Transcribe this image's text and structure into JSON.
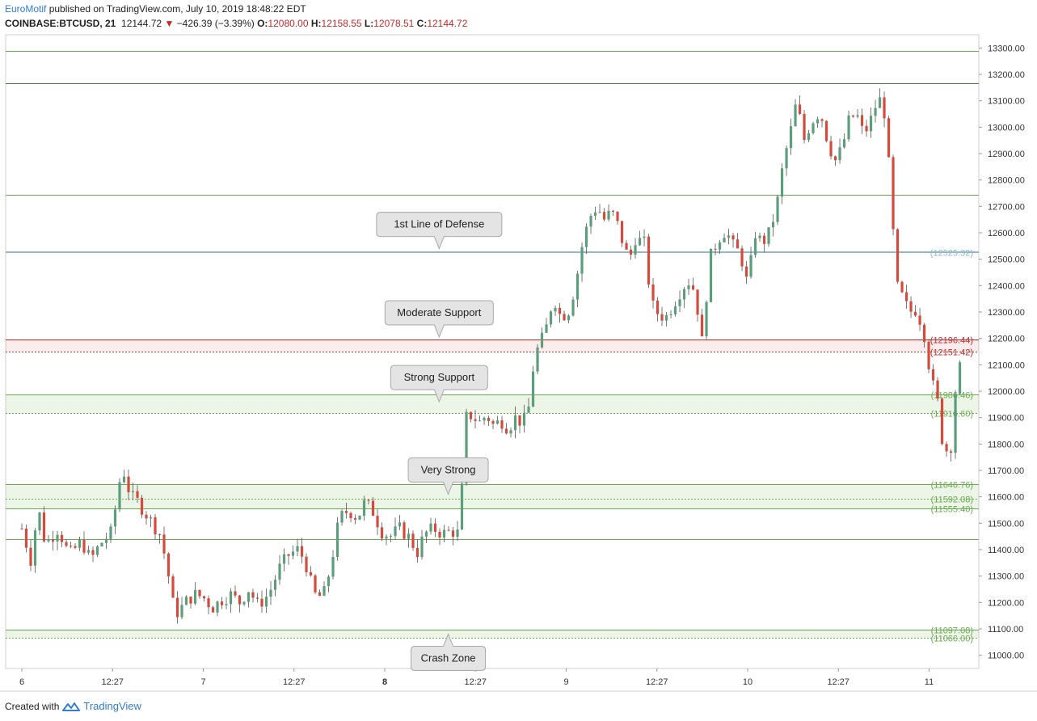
{
  "header": {
    "author": "EuroMotif",
    "published": "published on TradingView.com, July 10, 2019 18:48:22 EDT",
    "symbol": "COINBASE:BTCUSD, 21",
    "last": "12144.72",
    "change": "−426.39 (−3.39%)",
    "o_label": "O:",
    "o": "12080.00",
    "h_label": "H:",
    "h": "12158.55",
    "l_label": "L:",
    "l": "12078.51",
    "c_label": "C:",
    "c": "12144.72"
  },
  "footer": {
    "created": "Created with",
    "brand": "TradingView"
  },
  "colors": {
    "up": "#5c9e7c",
    "down": "#d64a3c",
    "support": "#6aaa4e",
    "resistance": "#c62828",
    "defense": "#8fb8cf"
  },
  "chart_data": {
    "type": "candlestick",
    "ylim": [
      10950,
      13350
    ],
    "y_ticks": [
      "13300.00",
      "13200.00",
      "13100.00",
      "13000.00",
      "12900.00",
      "12800.00",
      "12700.00",
      "12600.00",
      "12500.00",
      "12400.00",
      "12300.00",
      "12200.00",
      "12100.00",
      "12000.00",
      "11900.00",
      "11800.00",
      "11700.00",
      "11600.00",
      "11500.00",
      "11400.00",
      "11300.00",
      "11200.00",
      "11100.00",
      "11000.00"
    ],
    "x_ticks": [
      {
        "label": "6",
        "bold": false
      },
      {
        "label": "12:27",
        "bold": false
      },
      {
        "label": "7",
        "bold": false
      },
      {
        "label": "12:27",
        "bold": false
      },
      {
        "label": "8",
        "bold": true
      },
      {
        "label": "12:27",
        "bold": false
      },
      {
        "label": "9",
        "bold": false
      },
      {
        "label": "12:27",
        "bold": false
      },
      {
        "label": "10",
        "bold": false
      },
      {
        "label": "12:27",
        "bold": false
      },
      {
        "label": "11",
        "bold": false
      }
    ],
    "levels": [
      {
        "value": 13290,
        "kind": "green"
      },
      {
        "value": 13165,
        "kind": "dark"
      },
      {
        "value": 12745,
        "kind": "green"
      },
      {
        "value": 12530,
        "kind": "defense"
      },
      {
        "value": 12525.32,
        "kind": "defense",
        "label": "(12525.32)"
      },
      {
        "value": 12196.44,
        "kind": "red",
        "label": "(12196.44)"
      },
      {
        "value": 12151.42,
        "kind": "red-dot",
        "label": "(12151.42)"
      },
      {
        "value": 11986.46,
        "kind": "green",
        "label": "(11986.46)"
      },
      {
        "value": 11916.6,
        "kind": "green-dot",
        "label": "(11916.60)"
      },
      {
        "value": 11646.76,
        "kind": "green",
        "label": "(11646.76)"
      },
      {
        "value": 11592.08,
        "kind": "green-dot",
        "label": "(11592.08)"
      },
      {
        "value": 11555.4,
        "kind": "green",
        "label": "(11555.40)"
      },
      {
        "value": 11440,
        "kind": "green"
      },
      {
        "value": 11097.08,
        "kind": "green",
        "label": "(11097.08)"
      },
      {
        "value": 11066.0,
        "kind": "green-dot",
        "label": "(11066.00)"
      }
    ],
    "zones": [
      {
        "from": 12151.42,
        "to": 12196.44,
        "color": "red"
      },
      {
        "from": 11916.6,
        "to": 11986.46,
        "color": "green"
      },
      {
        "from": 11555.4,
        "to": 11646.76,
        "color": "green"
      },
      {
        "from": 11066.0,
        "to": 11097.08,
        "color": "green"
      }
    ],
    "annotations": [
      {
        "text": "1st Line of Defense",
        "anchor": "top",
        "value": 12540,
        "day": 2.3
      },
      {
        "text": "Moderate Support",
        "anchor": "top",
        "value": 12205,
        "day": 2.3
      },
      {
        "text": "Strong Support",
        "anchor": "top",
        "value": 11960,
        "day": 2.3
      },
      {
        "text": "Very Strong",
        "anchor": "top",
        "value": 11610,
        "day": 2.35
      },
      {
        "text": "Crash Zone",
        "anchor": "bottom",
        "value": 11080,
        "day": 2.35
      }
    ],
    "x_range_days": [
      0,
      5.63
    ],
    "candles_path": [
      [
        0.0,
        11480
      ],
      [
        0.05,
        11360
      ],
      [
        0.09,
        11560
      ],
      [
        0.13,
        11420
      ],
      [
        0.2,
        11480
      ],
      [
        0.26,
        11380
      ],
      [
        0.33,
        11430
      ],
      [
        0.38,
        11360
      ],
      [
        0.43,
        11420
      ],
      [
        0.5,
        11470
      ],
      [
        0.53,
        11640
      ],
      [
        0.56,
        11700
      ],
      [
        0.6,
        11600
      ],
      [
        0.63,
        11590
      ],
      [
        0.68,
        11540
      ],
      [
        0.72,
        11500
      ],
      [
        0.76,
        11460
      ],
      [
        0.8,
        11340
      ],
      [
        0.83,
        11200
      ],
      [
        0.86,
        11160
      ],
      [
        0.9,
        11200
      ],
      [
        0.95,
        11230
      ],
      [
        1.0,
        11220
      ],
      [
        1.05,
        11180
      ],
      [
        1.1,
        11210
      ],
      [
        1.15,
        11230
      ],
      [
        1.2,
        11200
      ],
      [
        1.25,
        11250
      ],
      [
        1.3,
        11190
      ],
      [
        1.36,
        11230
      ],
      [
        1.42,
        11330
      ],
      [
        1.47,
        11380
      ],
      [
        1.52,
        11400
      ],
      [
        1.56,
        11360
      ],
      [
        1.61,
        11230
      ],
      [
        1.66,
        11220
      ],
      [
        1.7,
        11330
      ],
      [
        1.75,
        11520
      ],
      [
        1.8,
        11550
      ],
      [
        1.85,
        11520
      ],
      [
        1.89,
        11580
      ],
      [
        1.94,
        11540
      ],
      [
        1.98,
        11470
      ],
      [
        2.03,
        11450
      ],
      [
        2.08,
        11480
      ],
      [
        2.13,
        11450
      ],
      [
        2.18,
        11390
      ],
      [
        2.22,
        11460
      ],
      [
        2.27,
        11480
      ],
      [
        2.32,
        11460
      ],
      [
        2.37,
        11470
      ],
      [
        2.41,
        11460
      ],
      [
        2.45,
        11900
      ],
      [
        2.48,
        11910
      ],
      [
        2.52,
        11880
      ],
      [
        2.56,
        11910
      ],
      [
        2.6,
        11870
      ],
      [
        2.64,
        11890
      ],
      [
        2.68,
        11860
      ],
      [
        2.72,
        11900
      ],
      [
        2.76,
        11880
      ],
      [
        2.79,
        11920
      ],
      [
        2.82,
        12100
      ],
      [
        2.85,
        12180
      ],
      [
        2.88,
        12210
      ],
      [
        2.93,
        12360
      ],
      [
        2.97,
        12280
      ],
      [
        3.02,
        12310
      ],
      [
        3.06,
        12440
      ],
      [
        3.09,
        12560
      ],
      [
        3.13,
        12660
      ],
      [
        3.17,
        12700
      ],
      [
        3.21,
        12650
      ],
      [
        3.25,
        12680
      ],
      [
        3.29,
        12620
      ],
      [
        3.32,
        12540
      ],
      [
        3.35,
        12500
      ],
      [
        3.38,
        12580
      ],
      [
        3.43,
        12560
      ],
      [
        3.47,
        12330
      ],
      [
        3.51,
        12290
      ],
      [
        3.55,
        12280
      ],
      [
        3.59,
        12330
      ],
      [
        3.63,
        12380
      ],
      [
        3.67,
        12420
      ],
      [
        3.71,
        12380
      ],
      [
        3.75,
        12180
      ],
      [
        3.79,
        12500
      ],
      [
        3.84,
        12580
      ],
      [
        3.88,
        12610
      ],
      [
        3.92,
        12550
      ],
      [
        3.96,
        12520
      ],
      [
        4.0,
        12400
      ],
      [
        4.04,
        12600
      ],
      [
        4.08,
        12560
      ],
      [
        4.12,
        12600
      ],
      [
        4.16,
        12700
      ],
      [
        4.2,
        12880
      ],
      [
        4.23,
        12960
      ],
      [
        4.27,
        13100
      ],
      [
        4.31,
        12950
      ],
      [
        4.35,
        13020
      ],
      [
        4.4,
        13060
      ],
      [
        4.44,
        12950
      ],
      [
        4.48,
        12870
      ],
      [
        4.52,
        12920
      ],
      [
        4.56,
        13030
      ],
      [
        4.6,
        13050
      ],
      [
        4.64,
        12970
      ],
      [
        4.68,
        13030
      ],
      [
        4.72,
        13110
      ],
      [
        4.75,
        13080
      ],
      [
        4.78,
        12840
      ],
      [
        4.82,
        12400
      ],
      [
        4.85,
        12360
      ],
      [
        4.89,
        12300
      ],
      [
        4.93,
        12310
      ],
      [
        4.97,
        12230
      ],
      [
        5.01,
        12050
      ],
      [
        5.05,
        11950
      ],
      [
        5.08,
        11770
      ],
      [
        5.12,
        11790
      ],
      [
        5.15,
        12040
      ],
      [
        5.19,
        12140
      ]
    ]
  }
}
